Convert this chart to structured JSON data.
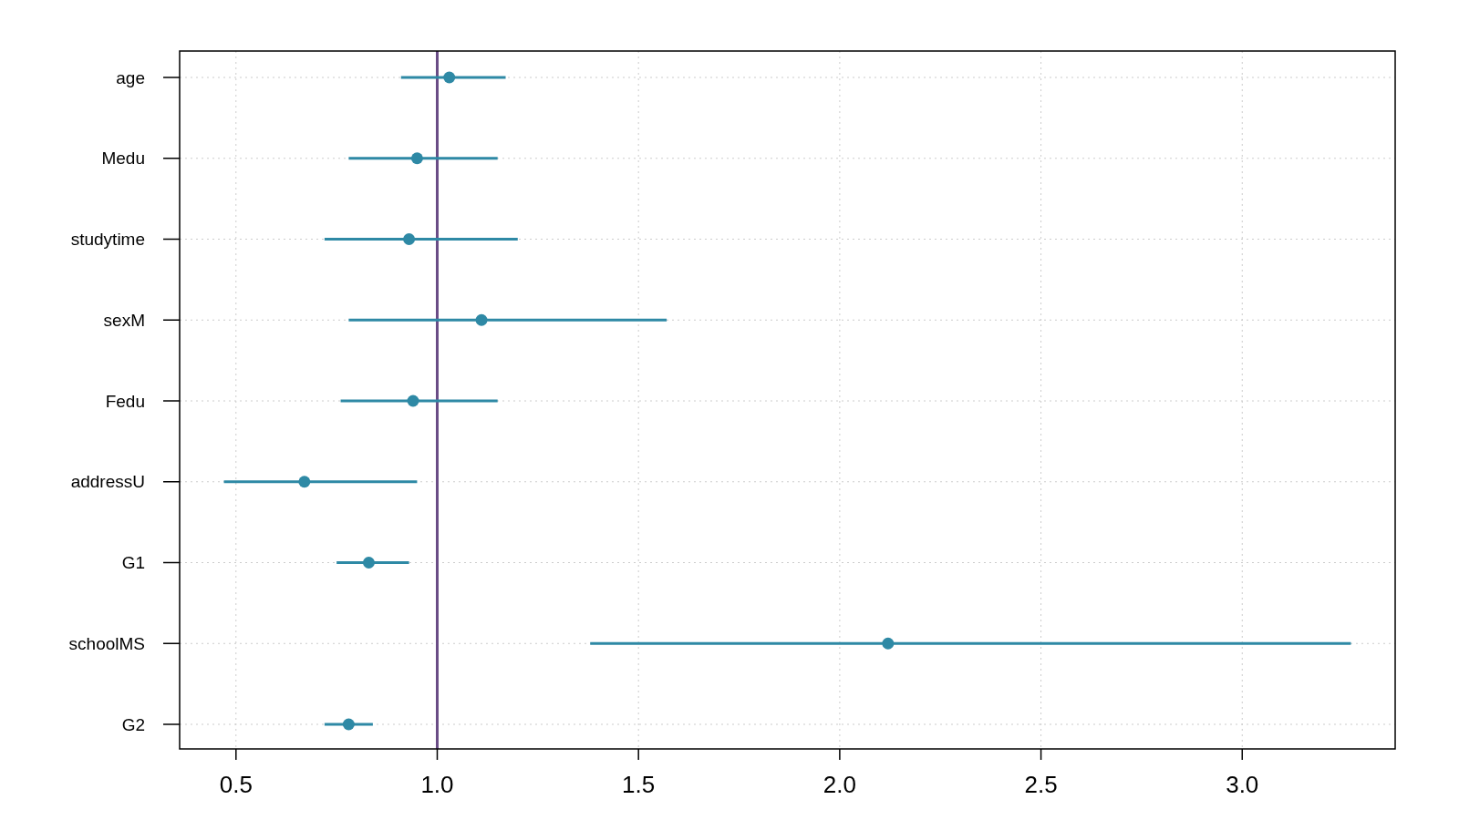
{
  "chart_data": {
    "type": "scatter",
    "orientation": "horizontal",
    "categories": [
      "age",
      "Medu",
      "studytime",
      "sexM",
      "Fedu",
      "addressU",
      "G1",
      "schoolMS",
      "G2"
    ],
    "series": [
      {
        "color": "#2e89a5",
        "values": [
          1.03,
          0.95,
          0.93,
          1.11,
          0.94,
          0.67,
          0.83,
          2.12,
          0.78
        ],
        "errors": [
          [
            0.91,
            1.17
          ],
          [
            0.78,
            1.15
          ],
          [
            0.72,
            1.2
          ],
          [
            0.78,
            1.57
          ],
          [
            0.76,
            1.15
          ],
          [
            0.47,
            0.95
          ],
          [
            0.75,
            0.93
          ],
          [
            1.38,
            3.27
          ],
          [
            0.72,
            0.84
          ]
        ]
      }
    ],
    "xlim": [
      0.36,
      3.38
    ],
    "xticks": [
      {
        "value": 0.5,
        "label": "0.5"
      },
      {
        "value": 1,
        "label": "1.0"
      },
      {
        "value": 1.5,
        "label": "1.5"
      },
      {
        "value": 2,
        "label": "2.0"
      },
      {
        "value": 2.5,
        "label": "2.5"
      },
      {
        "value": 3,
        "label": "3.0"
      }
    ],
    "grid": true,
    "marker": "circle",
    "ref_lines": [
      {
        "axis": "x",
        "value": 1,
        "color": "#6a4c86"
      }
    ]
  }
}
